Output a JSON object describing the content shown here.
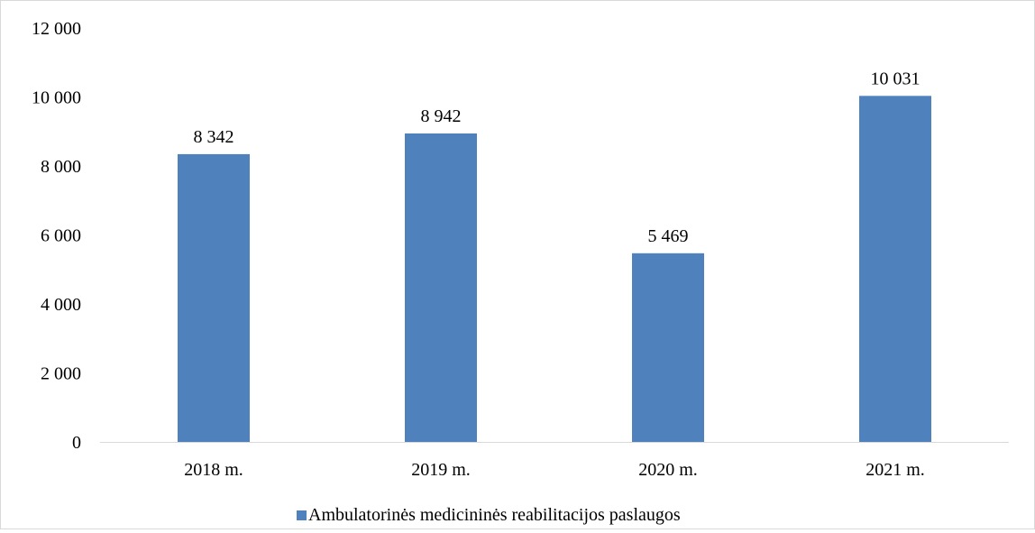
{
  "chart_data": {
    "type": "bar",
    "categories": [
      "2018 m.",
      "2019 m.",
      "2020 m.",
      "2021 m."
    ],
    "series": [
      {
        "name": "Ambulatorinės  medicininės reabilitacijos paslaugos",
        "values": [
          8342,
          8942,
          5469,
          10031
        ],
        "color": "#4f81bd"
      }
    ],
    "data_labels": [
      "8 342",
      "8 942",
      "5 469",
      "10 031"
    ],
    "y_ticks": [
      0,
      2000,
      4000,
      6000,
      8000,
      10000,
      12000
    ],
    "y_tick_labels": [
      "0",
      "2 000",
      "4 000",
      "6 000",
      "8 000",
      "10 000",
      "12 000"
    ],
    "ylim": [
      0,
      12000
    ],
    "grid": false,
    "legend_position": "bottom",
    "title": "",
    "xlabel": "",
    "ylabel": ""
  }
}
